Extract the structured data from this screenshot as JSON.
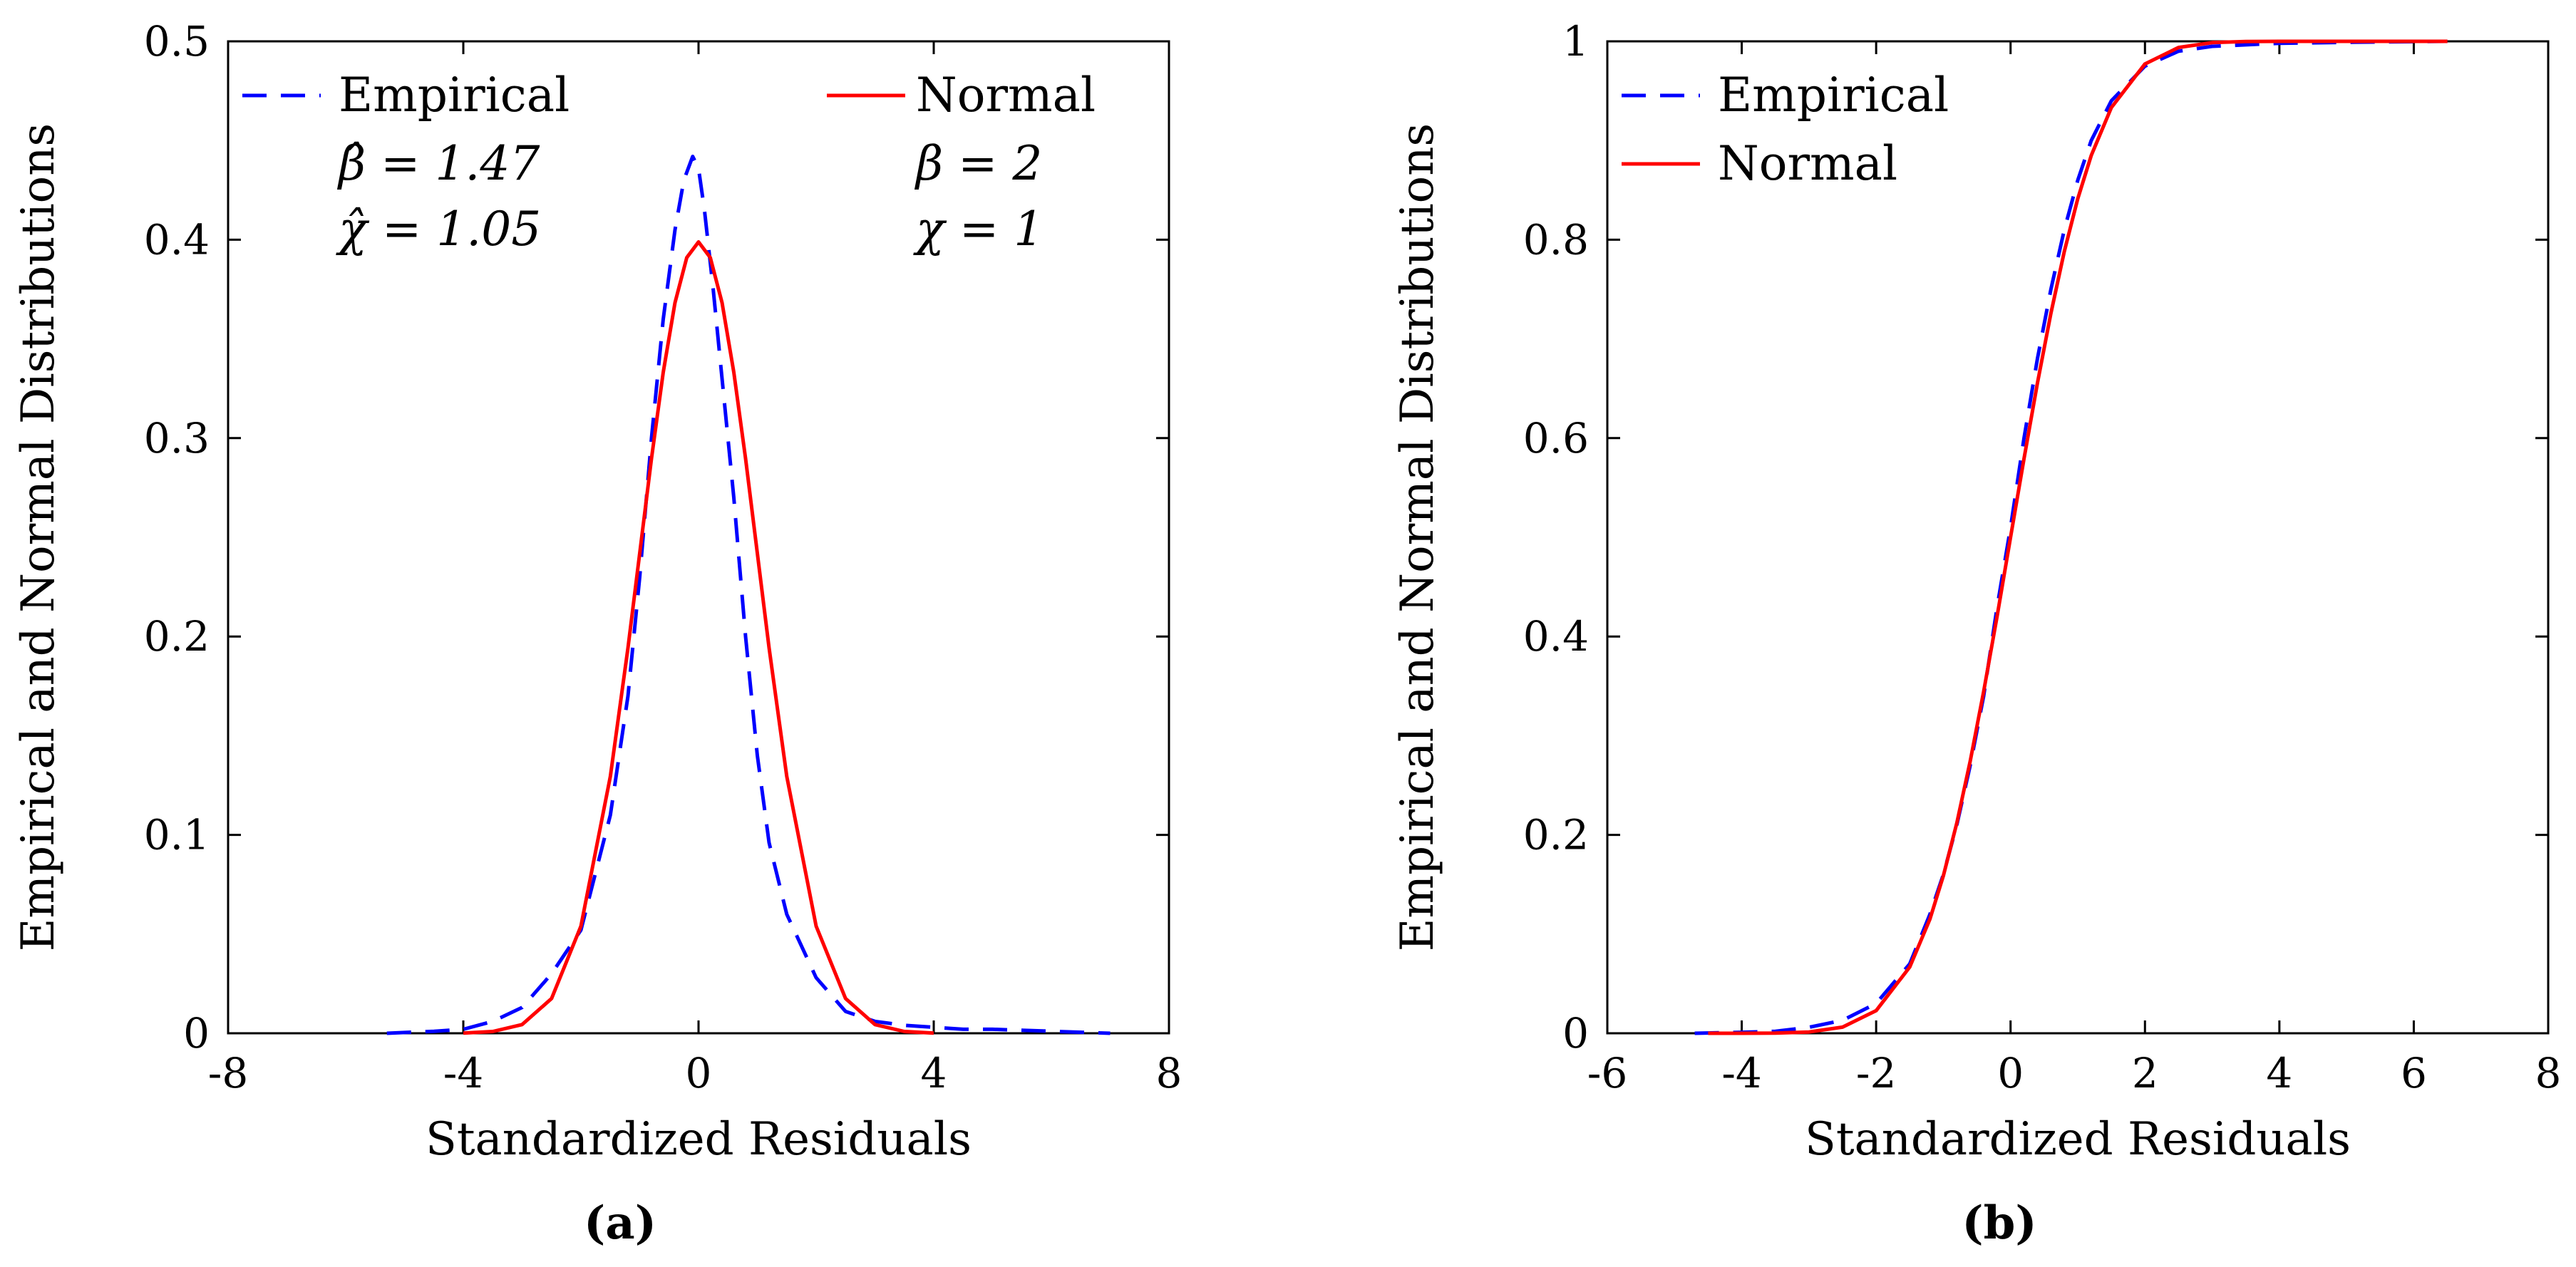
{
  "colors": {
    "empirical": "#0000ff",
    "normal": "#ff0000",
    "axis": "#000000"
  },
  "chart_data": [
    {
      "type": "line",
      "panel": "(a)",
      "xlabel": "Standardized Residuals",
      "ylabel": "Empirical and Normal Distributions",
      "xlim": [
        -8,
        8
      ],
      "ylim": [
        0,
        0.5
      ],
      "xticks": [
        -8,
        -4,
        0,
        4,
        8
      ],
      "xtick_labels": [
        "-8",
        "-4",
        "0",
        "4",
        "8"
      ],
      "yticks": [
        0,
        0.1,
        0.2,
        0.3,
        0.4,
        0.5
      ],
      "ytick_labels": [
        "0",
        "0.1",
        "0.2",
        "0.3",
        "0.4",
        "0.5"
      ],
      "legend": [
        {
          "label": "Empirical",
          "style": "dashed",
          "params": [
            "β̂ = 1.47",
            "χ̂ = 1.05"
          ]
        },
        {
          "label": "Normal",
          "style": "solid",
          "params": [
            "β = 2",
            "χ = 1"
          ]
        }
      ],
      "series": [
        {
          "name": "Empirical",
          "style": "dashed",
          "x": [
            -5.3,
            -4.5,
            -4.0,
            -3.5,
            -3.0,
            -2.5,
            -2.0,
            -1.5,
            -1.2,
            -1.0,
            -0.8,
            -0.6,
            -0.4,
            -0.25,
            -0.1,
            0.0,
            0.1,
            0.25,
            0.4,
            0.6,
            0.8,
            1.0,
            1.2,
            1.5,
            2.0,
            2.5,
            3.0,
            3.5,
            4.0,
            4.5,
            5.0,
            6.0,
            7.0
          ],
          "y": [
            0.0,
            0.001,
            0.002,
            0.006,
            0.013,
            0.03,
            0.052,
            0.11,
            0.17,
            0.23,
            0.3,
            0.36,
            0.405,
            0.43,
            0.442,
            0.436,
            0.415,
            0.375,
            0.33,
            0.27,
            0.2,
            0.14,
            0.096,
            0.06,
            0.028,
            0.011,
            0.006,
            0.004,
            0.003,
            0.002,
            0.002,
            0.001,
            0.0
          ]
        },
        {
          "name": "Normal",
          "style": "solid",
          "x": [
            -4.0,
            -3.5,
            -3.0,
            -2.5,
            -2.0,
            -1.5,
            -1.2,
            -1.0,
            -0.8,
            -0.6,
            -0.4,
            -0.2,
            0.0,
            0.2,
            0.4,
            0.6,
            0.8,
            1.0,
            1.2,
            1.5,
            2.0,
            2.5,
            3.0,
            3.5,
            4.0
          ],
          "y": [
            0.0001,
            0.0009,
            0.0044,
            0.0175,
            0.054,
            0.1295,
            0.1942,
            0.242,
            0.2897,
            0.3332,
            0.3683,
            0.391,
            0.3989,
            0.391,
            0.3683,
            0.3332,
            0.2897,
            0.242,
            0.1942,
            0.1295,
            0.054,
            0.0175,
            0.0044,
            0.0009,
            0.0001
          ]
        }
      ],
      "caption": "(a)"
    },
    {
      "type": "line",
      "panel": "(b)",
      "xlabel": "Standardized Residuals",
      "ylabel": "Empirical and Normal Distributions",
      "xlim": [
        -6,
        8
      ],
      "ylim": [
        0,
        1
      ],
      "xticks": [
        -6,
        -4,
        -2,
        0,
        2,
        4,
        6,
        8
      ],
      "xtick_labels": [
        "-6",
        "-4",
        "-2",
        "0",
        "2",
        "4",
        "6",
        "8"
      ],
      "yticks": [
        0,
        0.2,
        0.4,
        0.6,
        0.8,
        1
      ],
      "ytick_labels": [
        "0",
        "0.2",
        "0.4",
        "0.6",
        "0.8",
        "1"
      ],
      "legend": [
        {
          "label": "Empirical",
          "style": "dashed"
        },
        {
          "label": "Normal",
          "style": "solid"
        }
      ],
      "series": [
        {
          "name": "Empirical",
          "style": "dashed",
          "x": [
            -4.7,
            -4.0,
            -3.5,
            -3.0,
            -2.5,
            -2.0,
            -1.5,
            -1.2,
            -1.0,
            -0.8,
            -0.6,
            -0.4,
            -0.2,
            0.0,
            0.2,
            0.4,
            0.6,
            0.8,
            1.0,
            1.2,
            1.5,
            2.0,
            2.5,
            3.0,
            4.0,
            5.0,
            6.5
          ],
          "y": [
            0.0,
            0.001,
            0.002,
            0.006,
            0.013,
            0.03,
            0.07,
            0.12,
            0.16,
            0.21,
            0.27,
            0.34,
            0.43,
            0.51,
            0.6,
            0.68,
            0.75,
            0.81,
            0.86,
            0.9,
            0.94,
            0.975,
            0.99,
            0.995,
            0.998,
            0.999,
            1.0
          ]
        },
        {
          "name": "Normal",
          "style": "solid",
          "x": [
            -4.5,
            -4.0,
            -3.5,
            -3.0,
            -2.5,
            -2.0,
            -1.5,
            -1.2,
            -1.0,
            -0.8,
            -0.6,
            -0.4,
            -0.2,
            0.0,
            0.2,
            0.4,
            0.6,
            0.8,
            1.0,
            1.2,
            1.5,
            2.0,
            2.5,
            3.0,
            3.5,
            4.0,
            6.5
          ],
          "y": [
            0.0,
            0.0,
            0.0002,
            0.0013,
            0.0062,
            0.0228,
            0.0668,
            0.1151,
            0.1587,
            0.2119,
            0.2743,
            0.3446,
            0.4207,
            0.5,
            0.5793,
            0.6554,
            0.7257,
            0.7881,
            0.8413,
            0.8849,
            0.9332,
            0.9772,
            0.9938,
            0.9987,
            0.9998,
            1.0,
            1.0
          ]
        }
      ],
      "caption": "(b)"
    }
  ]
}
